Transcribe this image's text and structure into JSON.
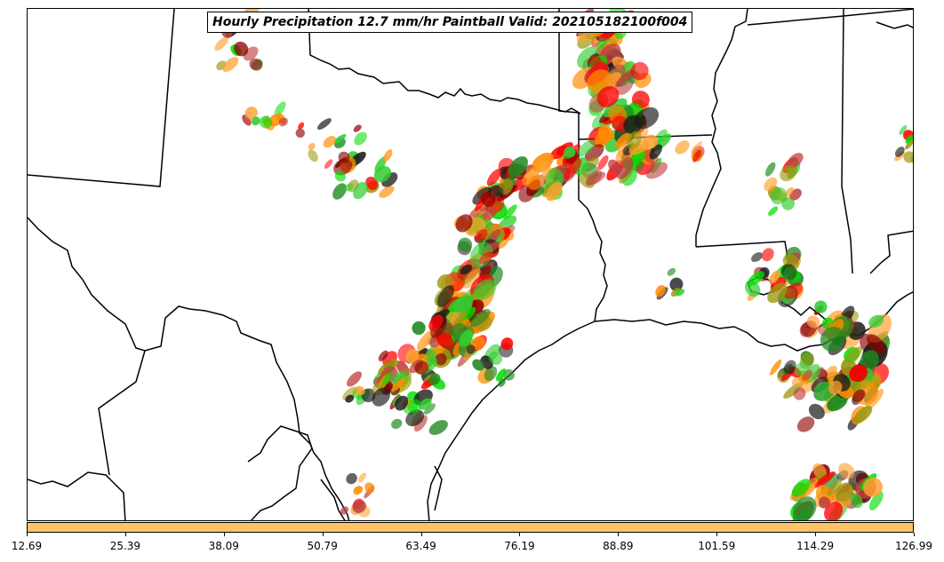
{
  "title": "Hourly Precipitation 12.7 mm/hr Paintball Valid: 202105182100f004",
  "colorbar": {
    "color": "#ffc266",
    "tick_labels": [
      "12.69",
      "25.39",
      "38.09",
      "50.79",
      "63.49",
      "76.19",
      "88.89",
      "101.59",
      "114.29",
      "126.99"
    ]
  },
  "colors": {
    "paintball": [
      "#ff0000",
      "#ff8c00",
      "#8b0000",
      "#228b22",
      "#00dd00",
      "#9a9a10",
      "#ffa030",
      "#1a1a1a",
      "#c04040",
      "#32cd32"
    ]
  }
}
